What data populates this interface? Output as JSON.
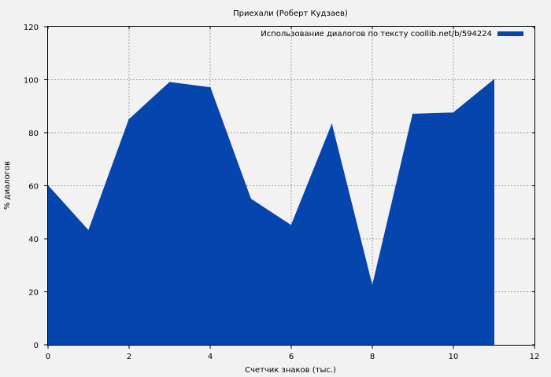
{
  "chart_data": {
    "type": "area",
    "title": "Приехали (Роберт Кудзаев)",
    "xlabel": "Счетчик знаков (тыс.)",
    "ylabel": "% диалогов",
    "xlim": [
      0,
      12
    ],
    "ylim": [
      0,
      120
    ],
    "xticks": [
      0,
      2,
      4,
      6,
      8,
      10,
      12
    ],
    "yticks": [
      0,
      20,
      40,
      60,
      80,
      100,
      120
    ],
    "grid": true,
    "legend_position": "top-right",
    "series": [
      {
        "name": "Использование диалогов по тексту coollib.net/b/594224",
        "color": "#0645ad",
        "x": [
          0,
          1,
          2,
          3,
          4,
          5,
          6,
          7,
          8,
          9,
          10,
          11
        ],
        "values": [
          60,
          43,
          85,
          99,
          97,
          55,
          45,
          83,
          22,
          87,
          87.5,
          100
        ]
      }
    ]
  }
}
